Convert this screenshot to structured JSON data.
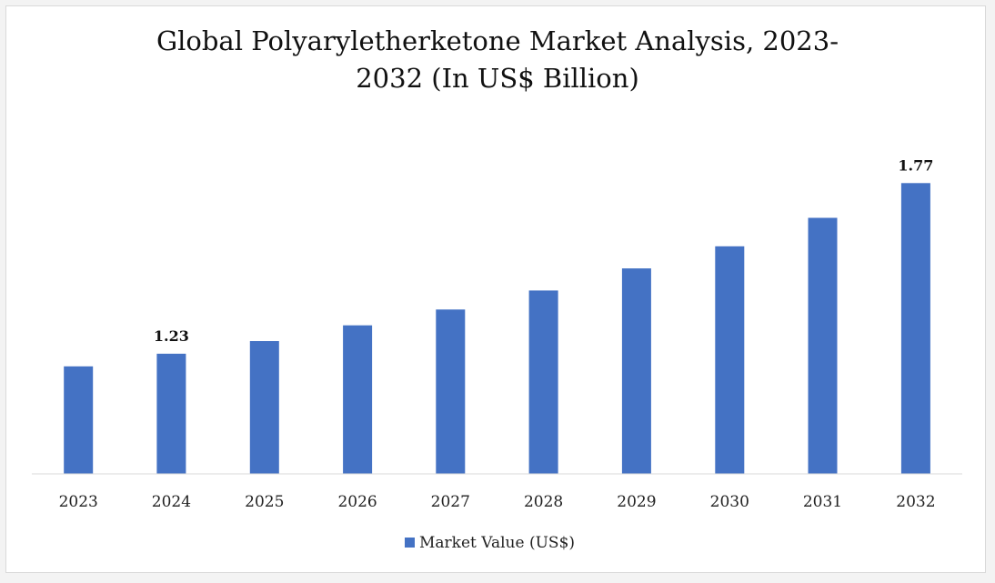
{
  "chart_data": {
    "type": "bar",
    "title_line1": "Global Polyaryletherketone Market Analysis, 2023-",
    "title_line2": "2032 (In US$ Billion)",
    "categories": [
      "2023",
      "2024",
      "2025",
      "2026",
      "2027",
      "2028",
      "2029",
      "2030",
      "2031",
      "2032"
    ],
    "series": [
      {
        "name": "Market Value (US$)",
        "color": "#4472c4",
        "values": [
          1.19,
          1.23,
          1.27,
          1.32,
          1.37,
          1.43,
          1.5,
          1.57,
          1.66,
          1.77
        ]
      }
    ],
    "data_labels": [
      {
        "category": "2024",
        "text": "1.23"
      },
      {
        "category": "2032",
        "text": "1.77"
      }
    ],
    "ylim": [
      0.85,
      1.86
    ],
    "xlabel": "",
    "ylabel": "",
    "grid": false,
    "legend_position": "bottom"
  }
}
